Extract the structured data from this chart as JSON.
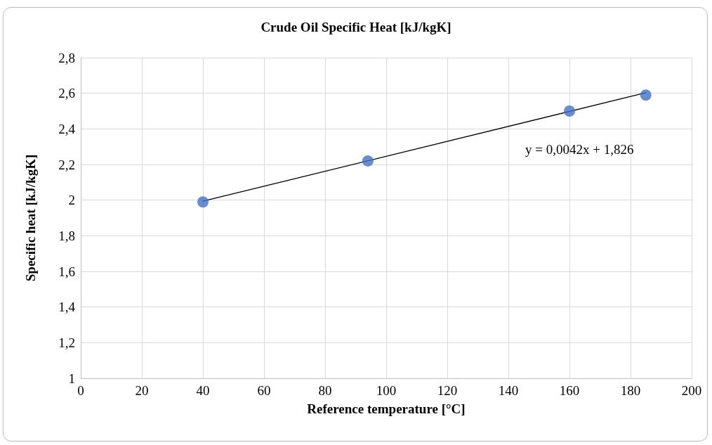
{
  "chart_data": {
    "type": "scatter",
    "title": "Crude Oil Specific Heat [kJ/kgK]",
    "xlabel": "Reference temperature [°C]",
    "ylabel": "Specific heat [kJ/kgK]",
    "series": [
      {
        "marker": "circle",
        "color": "#4472c4",
        "x": [
          40,
          94,
          160,
          185
        ],
        "values": [
          1.99,
          2.22,
          2.5,
          2.59
        ]
      },
      {
        "type": "line",
        "marker": "none",
        "color": "#000000",
        "x": [
          40,
          185
        ],
        "values": [
          1.994,
          2.603
        ]
      }
    ],
    "annotations": [
      "y = 0,0042x + 1,826"
    ],
    "xlim": [
      0,
      200
    ],
    "xticks": [
      0,
      20,
      40,
      60,
      80,
      100,
      120,
      140,
      160,
      180,
      200
    ],
    "ylim": [
      1,
      2.8
    ],
    "yticks": [
      1,
      {
        "value": 1.2,
        "label": "1,2"
      },
      {
        "value": 1.4,
        "label": "1,4"
      },
      {
        "value": 1.6,
        "label": "1,6"
      },
      {
        "value": 1.8,
        "label": "1,8"
      },
      2,
      {
        "value": 2.2,
        "label": "2,2"
      },
      {
        "value": 2.4,
        "label": "2,4"
      },
      {
        "value": 2.6,
        "label": "2,6"
      },
      {
        "value": 2.8,
        "label": "2,8"
      }
    ],
    "grid": true
  }
}
